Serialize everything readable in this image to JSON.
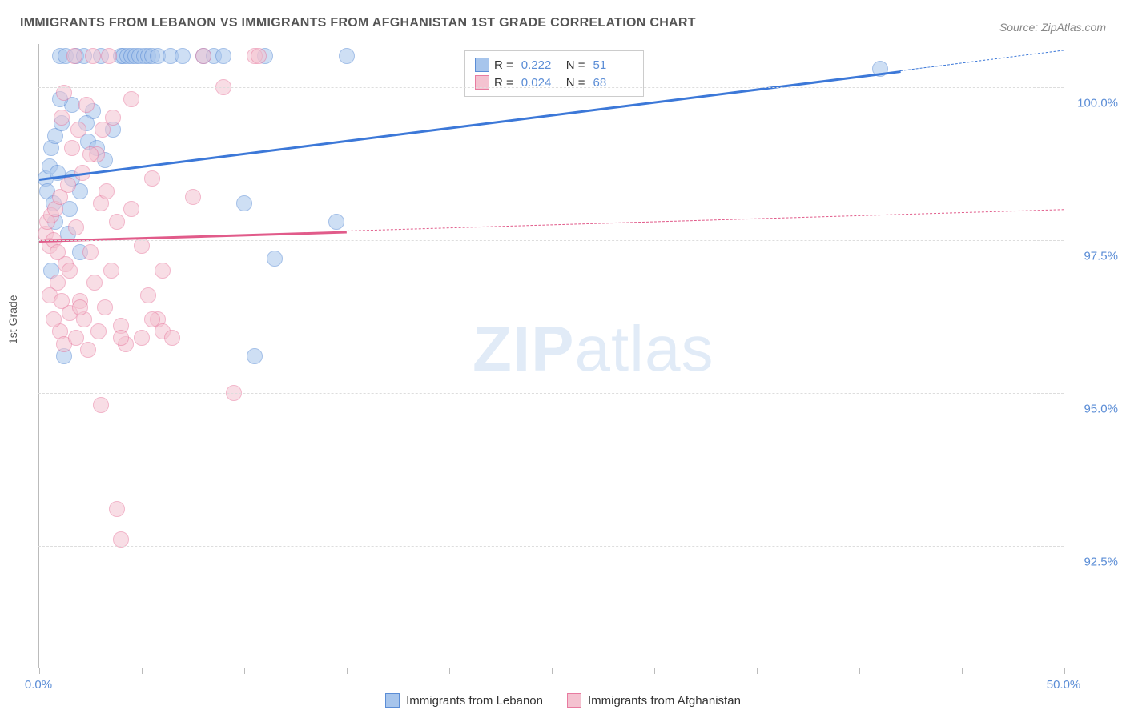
{
  "title": "IMMIGRANTS FROM LEBANON VS IMMIGRANTS FROM AFGHANISTAN 1ST GRADE CORRELATION CHART",
  "source": "Source: ZipAtlas.com",
  "ylabel": "1st Grade",
  "watermark_a": "ZIP",
  "watermark_b": "atlas",
  "chart": {
    "type": "scatter",
    "background_color": "#ffffff",
    "grid_color": "#dddddd",
    "axis_color": "#bbbbbb",
    "label_color": "#555555",
    "tick_label_color": "#5b8dd6",
    "title_fontsize": 16,
    "label_fontsize": 14,
    "tick_fontsize": 15,
    "xlim": [
      0,
      50
    ],
    "ylim": [
      90.5,
      100.7
    ],
    "xticks": [
      0,
      5,
      10,
      15,
      20,
      25,
      30,
      35,
      40,
      45,
      50
    ],
    "xtick_labels": {
      "0": "0.0%",
      "50": "50.0%"
    },
    "yticks": [
      92.5,
      95.0,
      97.5,
      100.0
    ],
    "ytick_labels": [
      "92.5%",
      "95.0%",
      "97.5%",
      "100.0%"
    ],
    "marker_radius": 10,
    "marker_opacity": 0.55,
    "series": [
      {
        "name": "Immigrants from Lebanon",
        "color_fill": "#a7c5ec",
        "color_stroke": "#5b8dd6",
        "R": "0.222",
        "N": "51",
        "trend": {
          "x1": 0,
          "y1": 98.5,
          "x2": 50,
          "y2": 100.6,
          "solid_until_x": 42,
          "line_color": "#3c78d8",
          "line_width": 2.5
        },
        "points": [
          [
            0.3,
            98.5
          ],
          [
            0.4,
            98.3
          ],
          [
            0.5,
            98.7
          ],
          [
            0.6,
            99.0
          ],
          [
            0.7,
            98.1
          ],
          [
            0.8,
            99.2
          ],
          [
            0.9,
            98.6
          ],
          [
            1.0,
            100.5
          ],
          [
            1.1,
            99.4
          ],
          [
            1.3,
            100.5
          ],
          [
            1.5,
            98.0
          ],
          [
            1.6,
            99.7
          ],
          [
            1.8,
            100.5
          ],
          [
            2.0,
            98.3
          ],
          [
            2.2,
            100.5
          ],
          [
            2.4,
            99.1
          ],
          [
            2.6,
            99.6
          ],
          [
            3.0,
            100.5
          ],
          [
            3.2,
            98.8
          ],
          [
            3.6,
            99.3
          ],
          [
            4.0,
            100.5
          ],
          [
            4.1,
            100.5
          ],
          [
            4.3,
            100.5
          ],
          [
            4.5,
            100.5
          ],
          [
            4.7,
            100.5
          ],
          [
            4.9,
            100.5
          ],
          [
            5.1,
            100.5
          ],
          [
            5.3,
            100.5
          ],
          [
            5.5,
            100.5
          ],
          [
            5.8,
            100.5
          ],
          [
            6.4,
            100.5
          ],
          [
            1.2,
            95.6
          ],
          [
            2.8,
            99.0
          ],
          [
            7.0,
            100.5
          ],
          [
            8.0,
            100.5
          ],
          [
            8.5,
            100.5
          ],
          [
            9.0,
            100.5
          ],
          [
            10.0,
            98.1
          ],
          [
            11.0,
            100.5
          ],
          [
            11.5,
            97.2
          ],
          [
            14.5,
            97.8
          ],
          [
            15.0,
            100.5
          ],
          [
            10.5,
            95.6
          ],
          [
            2.0,
            97.3
          ],
          [
            1.4,
            97.6
          ],
          [
            0.6,
            97.0
          ],
          [
            0.8,
            97.8
          ],
          [
            41.0,
            100.3
          ],
          [
            1.0,
            99.8
          ],
          [
            1.6,
            98.5
          ],
          [
            2.3,
            99.4
          ]
        ]
      },
      {
        "name": "Immigrants from Afghanistan",
        "color_fill": "#f4c2d0",
        "color_stroke": "#e87ba0",
        "R": "0.024",
        "N": "68",
        "trend": {
          "x1": 0,
          "y1": 97.5,
          "x2": 50,
          "y2": 98.0,
          "solid_until_x": 15,
          "line_color": "#e15b8a",
          "line_width": 2.5
        },
        "points": [
          [
            0.3,
            97.6
          ],
          [
            0.4,
            97.8
          ],
          [
            0.5,
            97.4
          ],
          [
            0.6,
            97.9
          ],
          [
            0.7,
            97.5
          ],
          [
            0.8,
            98.0
          ],
          [
            0.9,
            97.3
          ],
          [
            1.0,
            98.2
          ],
          [
            1.1,
            99.5
          ],
          [
            1.2,
            99.9
          ],
          [
            1.3,
            97.1
          ],
          [
            1.4,
            98.4
          ],
          [
            1.5,
            97.0
          ],
          [
            1.6,
            99.0
          ],
          [
            1.7,
            100.5
          ],
          [
            1.8,
            97.7
          ],
          [
            1.9,
            99.3
          ],
          [
            2.0,
            96.5
          ],
          [
            2.1,
            98.6
          ],
          [
            2.2,
            96.2
          ],
          [
            2.3,
            99.7
          ],
          [
            2.5,
            97.3
          ],
          [
            2.6,
            100.5
          ],
          [
            2.7,
            96.8
          ],
          [
            2.8,
            98.9
          ],
          [
            2.9,
            96.0
          ],
          [
            3.0,
            98.1
          ],
          [
            3.1,
            99.3
          ],
          [
            3.2,
            96.4
          ],
          [
            3.4,
            100.5
          ],
          [
            3.5,
            97.0
          ],
          [
            3.6,
            99.5
          ],
          [
            3.8,
            97.8
          ],
          [
            4.0,
            96.1
          ],
          [
            4.2,
            95.8
          ],
          [
            4.5,
            99.8
          ],
          [
            5.0,
            97.4
          ],
          [
            5.3,
            96.6
          ],
          [
            5.5,
            98.5
          ],
          [
            5.8,
            96.2
          ],
          [
            6.0,
            97.0
          ],
          [
            1.0,
            96.0
          ],
          [
            1.2,
            95.8
          ],
          [
            1.5,
            96.3
          ],
          [
            1.8,
            95.9
          ],
          [
            2.0,
            96.4
          ],
          [
            2.4,
            95.7
          ],
          [
            3.0,
            94.8
          ],
          [
            4.0,
            95.9
          ],
          [
            5.0,
            95.9
          ],
          [
            5.5,
            96.2
          ],
          [
            6.0,
            96.0
          ],
          [
            6.5,
            95.9
          ],
          [
            8.0,
            100.5
          ],
          [
            9.0,
            100.0
          ],
          [
            10.5,
            100.5
          ],
          [
            10.7,
            100.5
          ],
          [
            7.5,
            98.2
          ],
          [
            9.5,
            95.0
          ],
          [
            3.8,
            93.1
          ],
          [
            4.0,
            92.6
          ],
          [
            0.5,
            96.6
          ],
          [
            0.7,
            96.2
          ],
          [
            0.9,
            96.8
          ],
          [
            1.1,
            96.5
          ],
          [
            2.5,
            98.9
          ],
          [
            3.3,
            98.3
          ],
          [
            4.5,
            98.0
          ]
        ]
      }
    ]
  },
  "bottom_legend": [
    {
      "label": "Immigrants from Lebanon",
      "fill": "#a7c5ec",
      "stroke": "#5b8dd6"
    },
    {
      "label": "Immigrants from Afghanistan",
      "fill": "#f4c2d0",
      "stroke": "#e87ba0"
    }
  ]
}
